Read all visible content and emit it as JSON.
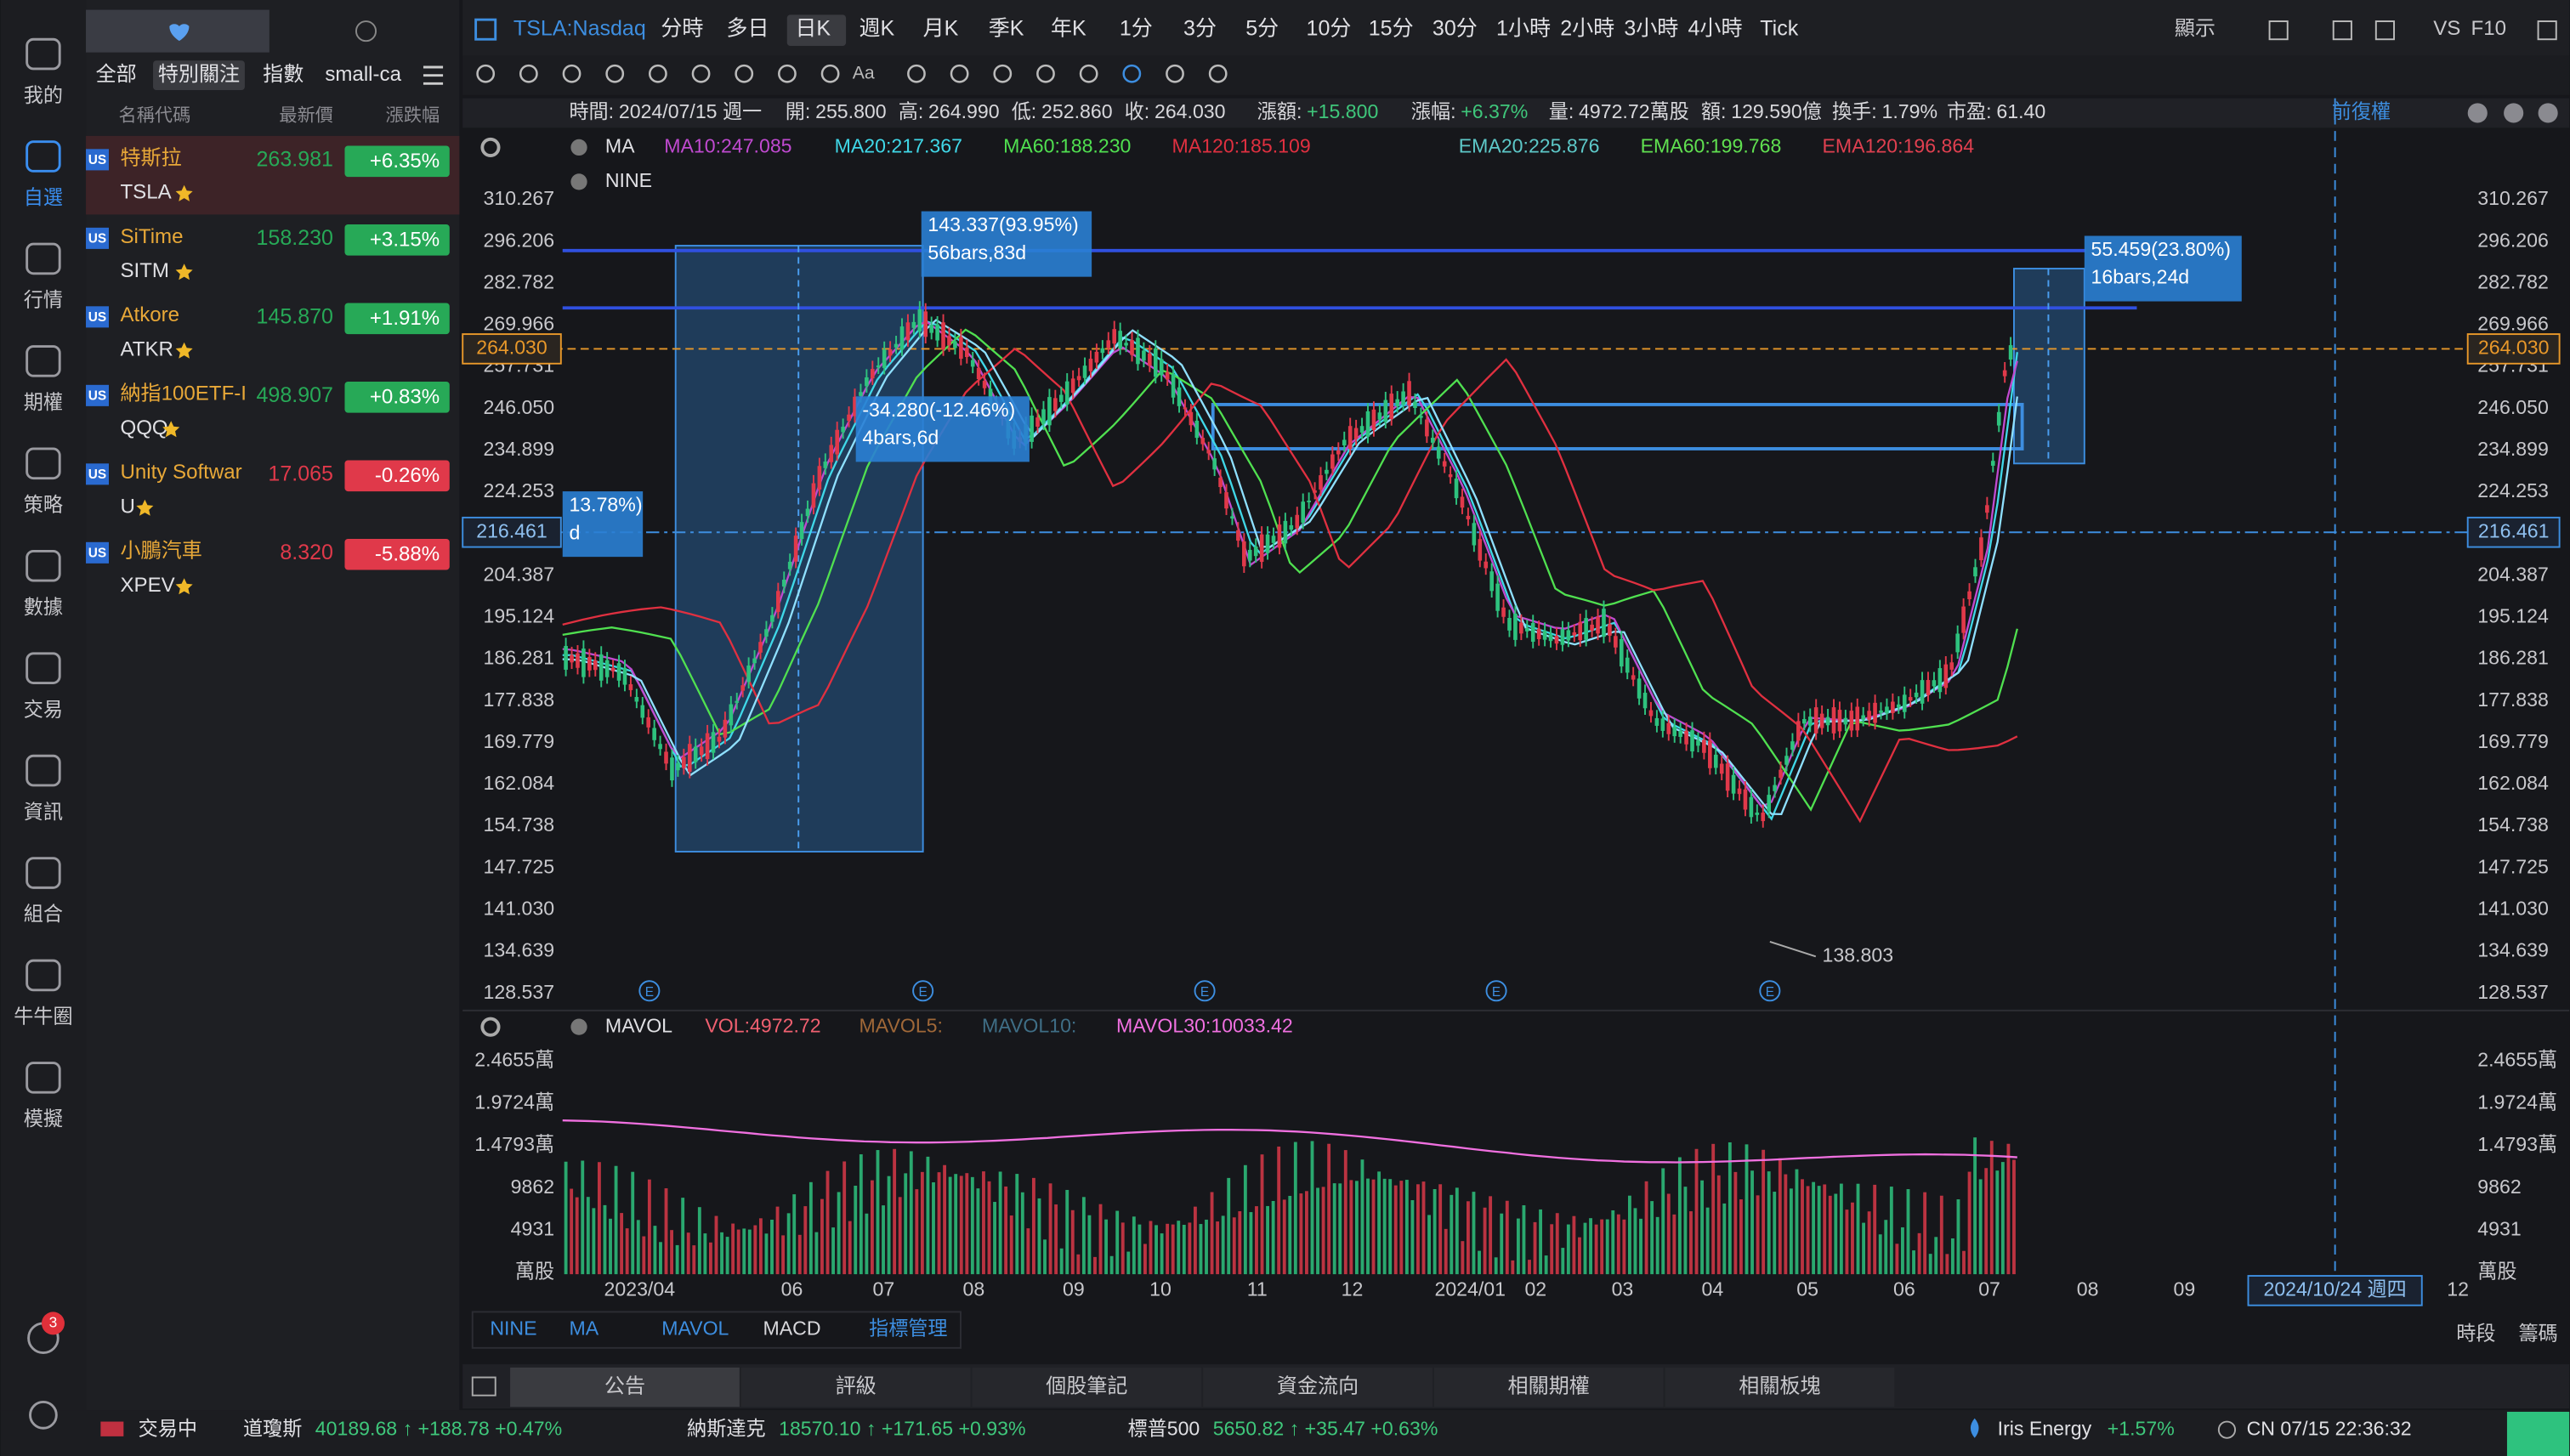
{
  "sidebar": {
    "items": [
      "我的",
      "自選",
      "行情",
      "期權",
      "策略",
      "數據",
      "交易",
      "資訊",
      "組合",
      "牛牛圈",
      "模擬"
    ],
    "badge": "3",
    "selected": 1
  },
  "watchlist": {
    "tabs": [
      "全部",
      "特別關注",
      "指數",
      "small-ca"
    ],
    "selected_tab": 1,
    "headers": [
      "名稱代碼",
      "最新價",
      "漲跌幅"
    ],
    "rows": [
      {
        "market": "US",
        "name": "特斯拉",
        "code": "TSLA",
        "price": "263.981",
        "change": "+6.35%",
        "color": "#27a957"
      },
      {
        "market": "US",
        "name": "SiTime",
        "code": "SITM",
        "price": "158.230",
        "change": "+3.15%",
        "color": "#27a957"
      },
      {
        "market": "US",
        "name": "Atkore",
        "code": "ATKR",
        "price": "145.870",
        "change": "+1.91%",
        "color": "#27a957"
      },
      {
        "market": "US",
        "name": "納指100ETF-I",
        "code": "QQQ",
        "price": "498.907",
        "change": "+0.83%",
        "color": "#27a957"
      },
      {
        "market": "US",
        "name": "Unity Softwar",
        "code": "U",
        "price": "17.065",
        "change": "-0.26%",
        "color": "#e0394a"
      },
      {
        "market": "US",
        "name": "小鵬汽車",
        "code": "XPEV",
        "price": "8.320",
        "change": "-5.88%",
        "color": "#e0394a"
      }
    ]
  },
  "toolbar": {
    "symbol": "TSLA:Nasdaq",
    "periods": [
      "分時",
      "多日",
      "日K",
      "週K",
      "月K",
      "季K",
      "年K",
      "1分",
      "3分",
      "5分",
      "10分",
      "15分",
      "30分",
      "1小時",
      "2小時",
      "3小時",
      "4小時",
      "Tick"
    ],
    "selected_period": 2,
    "right": [
      "顯示",
      "VS",
      "F10"
    ],
    "tools_text": "Aa"
  },
  "infobar": [
    {
      "label": "時間:",
      "value": "2024/07/15 週一"
    },
    {
      "label": "開:",
      "value": "255.800"
    },
    {
      "label": "高:",
      "value": "264.990"
    },
    {
      "label": "低:",
      "value": "252.860"
    },
    {
      "label": "收:",
      "value": "264.030"
    },
    {
      "label": "漲額:",
      "value": "+15.800"
    },
    {
      "label": "漲幅:",
      "value": "+6.37%"
    },
    {
      "label": "量:",
      "value": "4972.72萬股"
    },
    {
      "label": "額:",
      "value": "129.590億"
    },
    {
      "label": "換手:",
      "value": "1.79%"
    },
    {
      "label": "市盈:",
      "value": "61.40"
    }
  ],
  "infobar_right": "前復權",
  "indicators": {
    "main": "MA",
    "lines": [
      {
        "text": "MA10:247.085",
        "color": "#c04ad0"
      },
      {
        "text": "MA20:217.367",
        "color": "#40d8e8"
      },
      {
        "text": "MA60:188.230",
        "color": "#50e050"
      },
      {
        "text": "MA120:185.109",
        "color": "#e03040"
      },
      {
        "text": "EMA20:225.876",
        "color": "#5dc8c8"
      },
      {
        "text": "EMA60:199.768",
        "color": "#60e050"
      },
      {
        "text": "EMA120:196.864",
        "color": "#e04050"
      }
    ],
    "second": "NINE"
  },
  "price_axis": [
    "310.267",
    "296.206",
    "282.782",
    "269.966",
    "257.731",
    "246.050",
    "234.899",
    "224.253",
    "",
    "204.387",
    "195.124",
    "186.281",
    "177.838",
    "169.779",
    "162.084",
    "154.738",
    "147.725",
    "141.030",
    "134.639",
    "128.537"
  ],
  "current_price": "264.030",
  "cursor_price": "216.461",
  "annotations": {
    "box1_value": "143.337(93.95%)",
    "box1_bars": "56bars,83d",
    "box2_value": "-34.280(-12.46%)",
    "box2_bars": "4bars,6d",
    "box3_value": "55.459(23.80%)",
    "box3_bars": "16bars,24d",
    "box0_value": "13.78%)",
    "box0_bars": "d",
    "low": "138.803"
  },
  "earnings_markers": [
    "E",
    "E",
    "E",
    "E",
    "E"
  ],
  "volume": {
    "main": "MAVOL",
    "lines": [
      {
        "text": "VOL:4972.72",
        "color": "#f06070"
      },
      {
        "text": "MAVOL5:",
        "color": "#a06838"
      },
      {
        "text": "MAVOL10:",
        "color": "#3f6e86"
      },
      {
        "text": "MAVOL30:10033.42",
        "color": "#f070e0"
      }
    ],
    "axis": [
      "2.4655萬",
      "1.9724萬",
      "1.4793萬",
      "9862",
      "4931",
      "萬股"
    ]
  },
  "x_axis": [
    "2023/04",
    "06",
    "07",
    "08",
    "09",
    "10",
    "11",
    "12",
    "2024/01",
    "02",
    "03",
    "04",
    "05",
    "06",
    "07",
    "08",
    "09",
    "2024/10/24 週四",
    "12"
  ],
  "x_axis_right": [
    "時段",
    "籌碼"
  ],
  "indicator_tabs": [
    "NINE",
    "MA",
    "MAVOL",
    "MACD",
    "指標管理"
  ],
  "bottom_tabs": [
    "公告",
    "評級",
    "個股筆記",
    "資金流向",
    "相關期權",
    "相關板塊"
  ],
  "status": {
    "state": "交易中",
    "indices": [
      {
        "name": "道瓊斯",
        "quote": "40189.68 ↑ +188.78 +0.47%"
      },
      {
        "name": "納斯達克",
        "quote": "18570.10 ↑ +171.65 +0.93%"
      },
      {
        "name": "標普500",
        "quote": "5650.82 ↑ +35.47 +0.63%"
      }
    ],
    "ticker": {
      "name": "Iris Energy",
      "change": "+1.57%"
    },
    "clock": "CN 07/15 22:36:32"
  }
}
